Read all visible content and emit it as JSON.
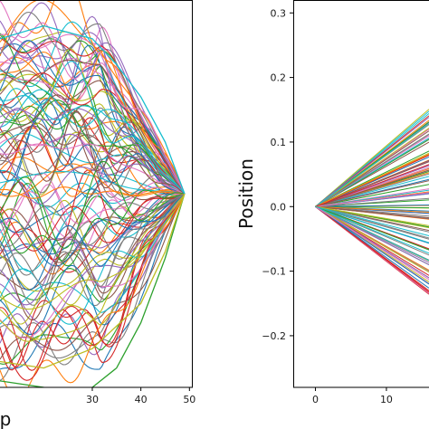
{
  "chart_data": [
    {
      "type": "line",
      "title": "",
      "xlabel": "p",
      "ylabel": "",
      "xlim": [
        11,
        50.5
      ],
      "ylim": [
        -0.3,
        0.3
      ],
      "x_ticks": [
        "30",
        "40",
        "50"
      ],
      "x_tick_values": [
        30,
        40,
        50
      ],
      "y_ticks": [],
      "grid": false,
      "legend": "none",
      "n_series": 110,
      "convergence_point": {
        "x": 49,
        "y": 0.0
      },
      "series_x_start": 11,
      "series_spread_at_start": [
        -0.3,
        0.3
      ],
      "extreme_series": [
        {
          "color": "#2ca02c",
          "x": [
            11,
            20,
            25,
            30,
            35,
            40,
            45,
            49
          ],
          "values": [
            -0.29,
            -0.3,
            -0.31,
            -0.3,
            -0.27,
            -0.2,
            -0.1,
            0.0
          ]
        },
        {
          "color": "#bcbd22",
          "x": [
            11,
            20,
            30,
            40,
            45,
            49
          ],
          "values": [
            -0.26,
            -0.27,
            -0.24,
            -0.17,
            -0.09,
            0.0
          ]
        },
        {
          "color": "#17becf",
          "x": [
            11,
            20,
            25,
            30,
            35,
            40,
            45,
            49
          ],
          "values": [
            0.24,
            0.26,
            0.25,
            0.24,
            0.2,
            0.15,
            0.08,
            0.0
          ]
        }
      ]
    },
    {
      "type": "line",
      "title": "",
      "xlabel": "",
      "ylabel": "Position",
      "xlim": [
        -3,
        16
      ],
      "ylim": [
        -0.28,
        0.32
      ],
      "x_ticks": [
        "0",
        "10"
      ],
      "x_tick_values": [
        0,
        10
      ],
      "y_ticks": [
        "0.3",
        "0.2",
        "0.1",
        "0.0",
        "−0.1",
        "−0.2"
      ],
      "y_tick_values": [
        0.3,
        0.2,
        0.1,
        0.0,
        -0.1,
        -0.2
      ],
      "grid": false,
      "legend": "none",
      "n_series": 110,
      "origin": {
        "x": 0,
        "y": 0.0
      },
      "slope_range": [
        -0.0085,
        0.0095
      ]
    }
  ],
  "palette": [
    "#1f77b4",
    "#ff7f0e",
    "#2ca02c",
    "#d62728",
    "#9467bd",
    "#8c564b",
    "#e377c2",
    "#7f7f7f",
    "#bcbd22",
    "#17becf"
  ]
}
